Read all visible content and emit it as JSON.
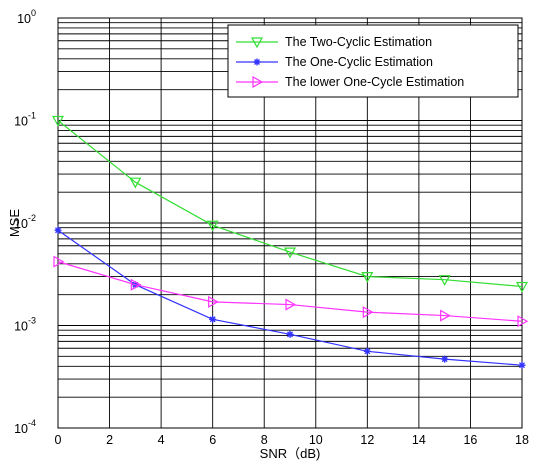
{
  "chart_data": {
    "type": "line",
    "title": "",
    "xlabel": "SNR（dB)",
    "ylabel": "MSE",
    "xlim": [
      0,
      18
    ],
    "ylim": [
      0.0001,
      1
    ],
    "yscale": "log",
    "grid": true,
    "legend_position": "top-right",
    "x_ticks": [
      "0",
      "2",
      "4",
      "6",
      "8",
      "10",
      "12",
      "14",
      "16",
      "18"
    ],
    "y_ticks": [
      {
        "base": "10",
        "exp": "0",
        "value": 1
      },
      {
        "base": "10",
        "exp": "-1",
        "value": 0.1
      },
      {
        "base": "10",
        "exp": "-2",
        "value": 0.01
      },
      {
        "base": "10",
        "exp": "-3",
        "value": 0.001
      },
      {
        "base": "10",
        "exp": "-4",
        "value": 0.0001
      }
    ],
    "x": [
      0,
      3,
      6,
      9,
      12,
      15,
      18
    ],
    "series": [
      {
        "name": "The Two-Cyclic Estimation",
        "color": "#33dd33",
        "marker": "triangle-down",
        "values": [
          0.1,
          0.025,
          0.0095,
          0.0052,
          0.003,
          0.0028,
          0.0024
        ]
      },
      {
        "name": "The One-Cyclic Estimation",
        "color": "#3333ff",
        "marker": "star",
        "values": [
          0.0085,
          0.0025,
          0.00115,
          0.00082,
          0.00056,
          0.00047,
          0.00041
        ]
      },
      {
        "name": "The lower One-Cycle Estimation",
        "color": "#ff33ff",
        "marker": "triangle-right",
        "values": [
          0.0042,
          0.0025,
          0.0017,
          0.0016,
          0.00135,
          0.00125,
          0.0011
        ]
      }
    ]
  }
}
